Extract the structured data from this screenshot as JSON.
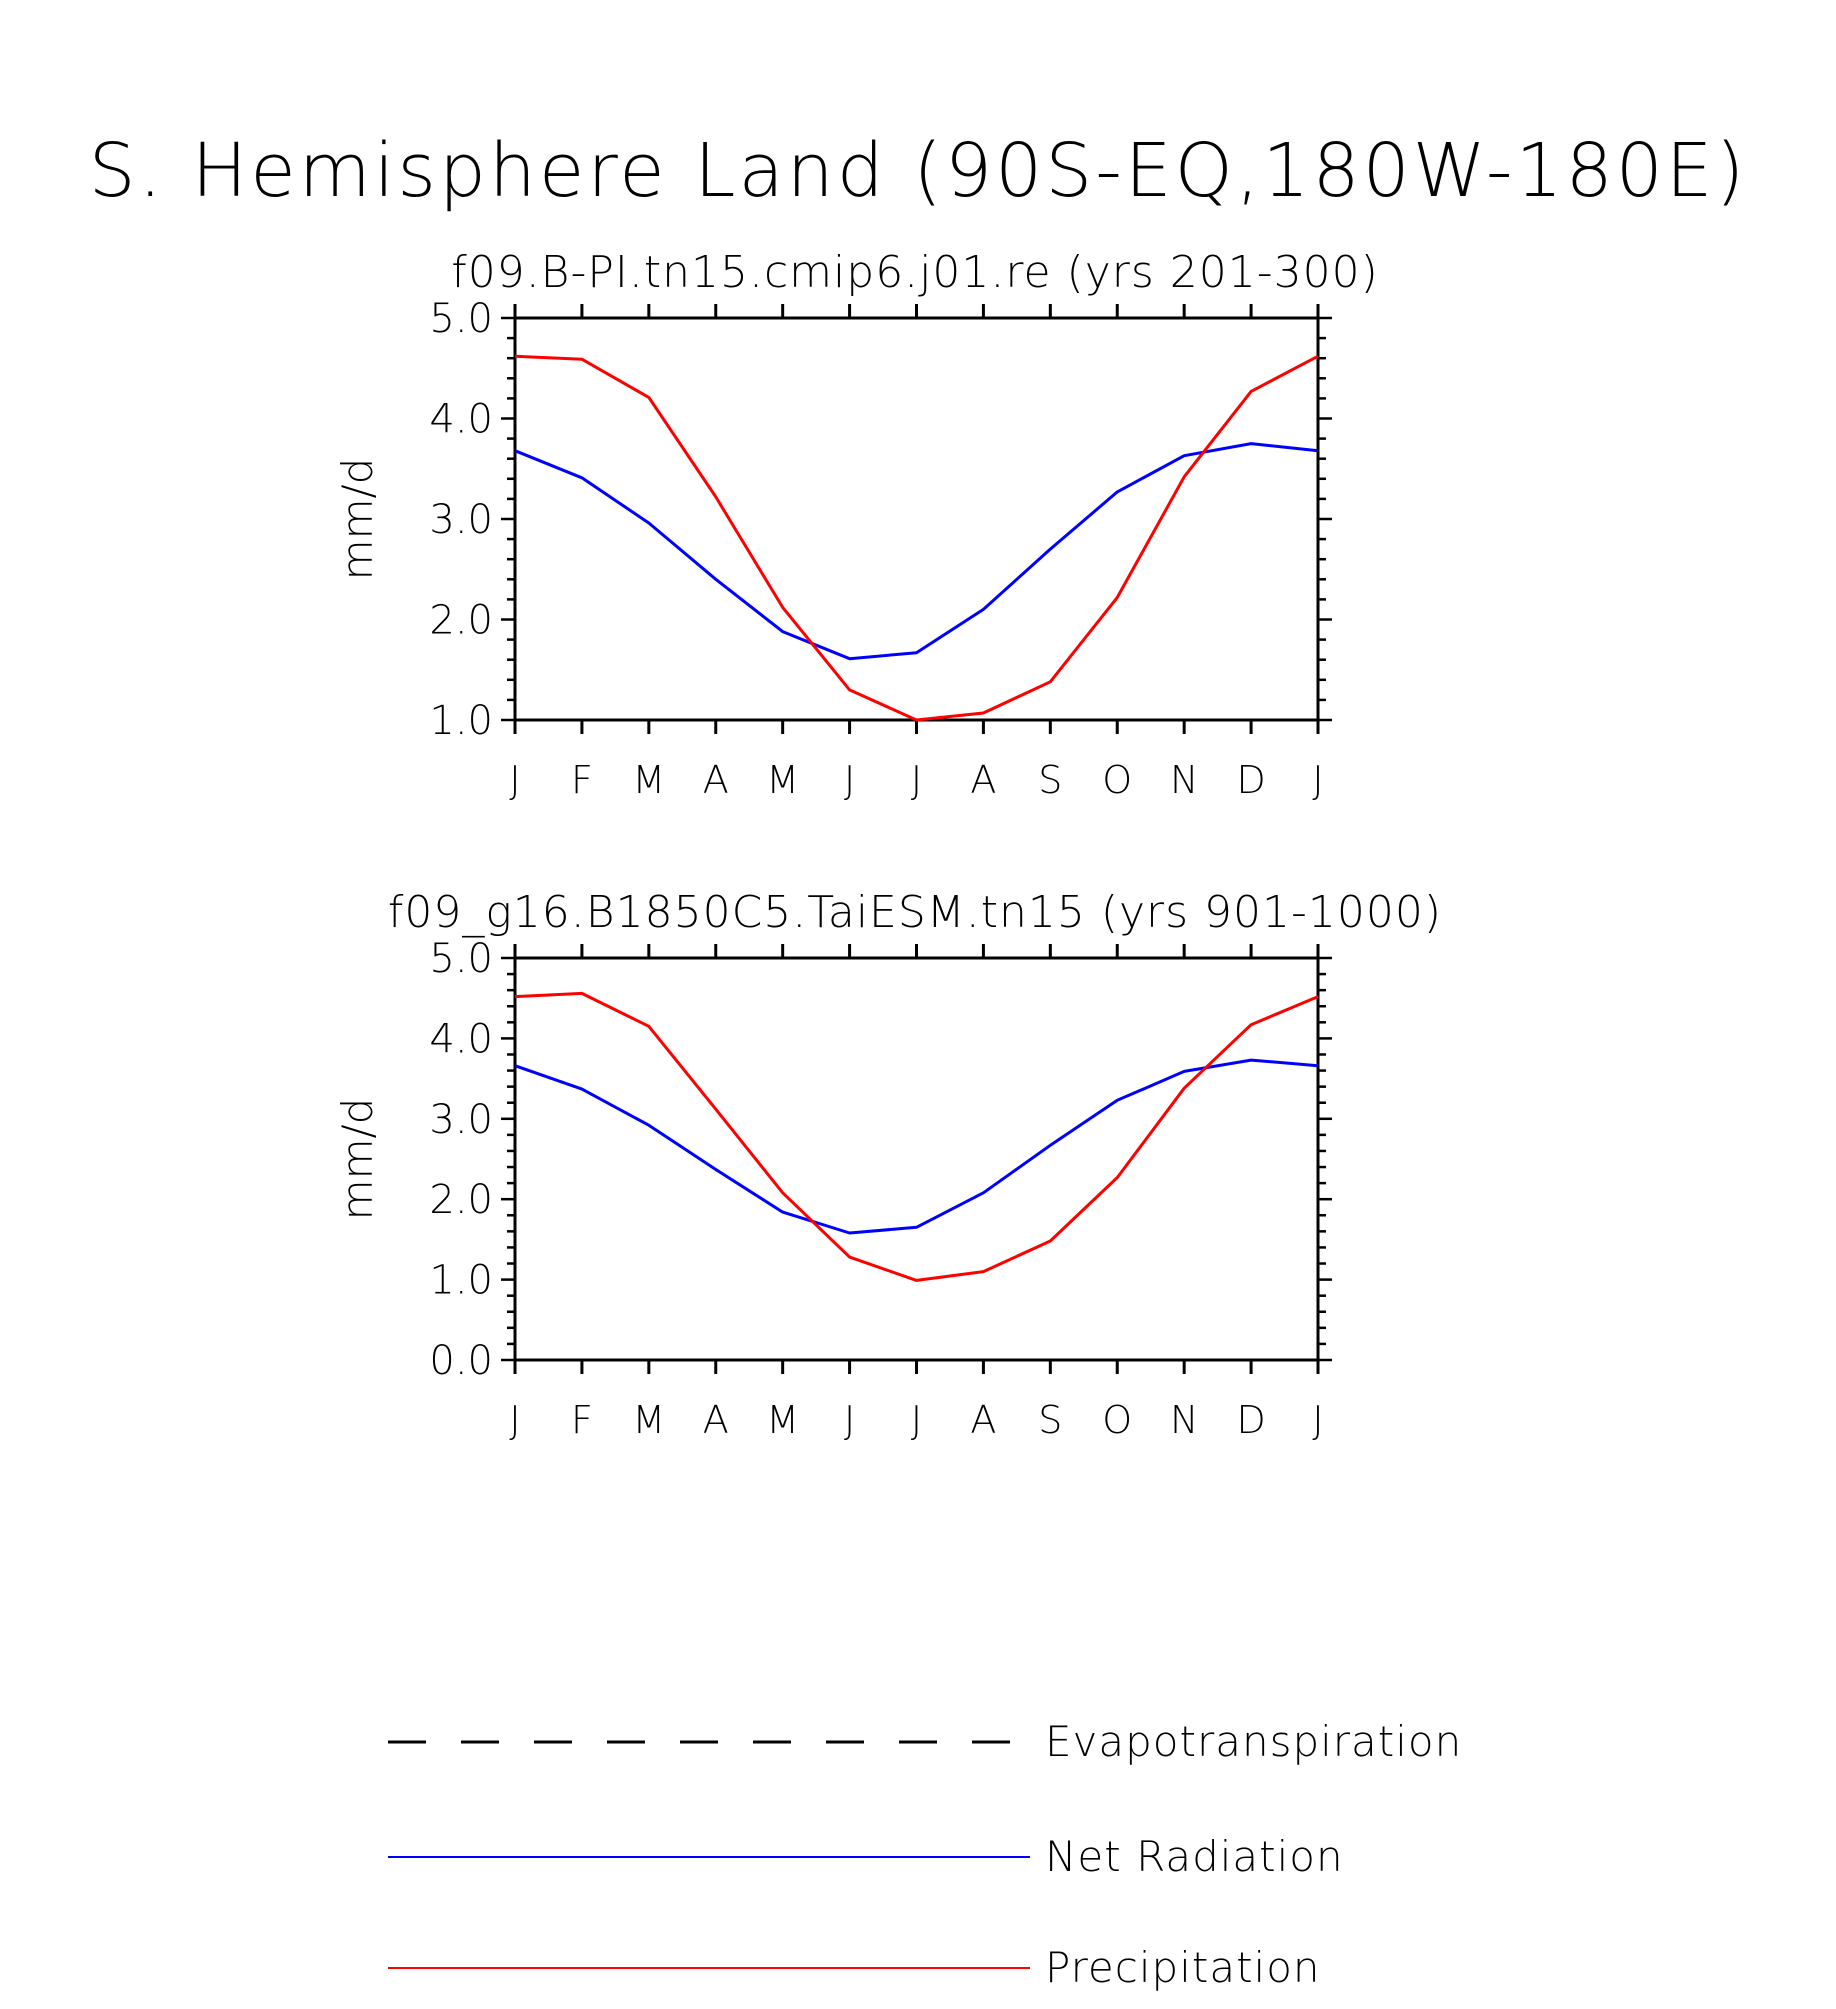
{
  "title": "S. Hemisphere Land (90S-EQ,180W-180E)",
  "colors": {
    "net_radiation": "#0000ff",
    "precipitation": "#ff0000",
    "evapotranspiration": "#000000",
    "axis": "#000000"
  },
  "chart_data": [
    {
      "type": "line",
      "title": "f09.B-PI.tn15.cmip6.j01.re (yrs 201-300)",
      "ylabel": "mm/d",
      "xlabel": "",
      "categories": [
        "J",
        "F",
        "M",
        "A",
        "M",
        "J",
        "J",
        "A",
        "S",
        "O",
        "N",
        "D",
        "J"
      ],
      "ylim": [
        1.0,
        5.0
      ],
      "yticks": [
        "5.0",
        "4.0",
        "3.0",
        "2.0",
        "1.0"
      ],
      "series": [
        {
          "name": "Net Radiation",
          "color": "#0000ff",
          "values": [
            3.68,
            3.41,
            2.96,
            2.4,
            1.88,
            1.61,
            1.67,
            2.1,
            2.7,
            3.27,
            3.63,
            3.75,
            3.68
          ]
        },
        {
          "name": "Precipitation",
          "color": "#ff0000",
          "values": [
            4.62,
            4.59,
            4.21,
            3.22,
            2.12,
            1.3,
            1.0,
            1.07,
            1.38,
            2.22,
            3.42,
            4.27,
            4.62
          ]
        }
      ]
    },
    {
      "type": "line",
      "title": "f09_g16.B1850C5.TaiESM.tn15 (yrs 901-1000)",
      "ylabel": "mm/d",
      "xlabel": "",
      "categories": [
        "J",
        "F",
        "M",
        "A",
        "M",
        "J",
        "J",
        "A",
        "S",
        "O",
        "N",
        "D",
        "J"
      ],
      "ylim": [
        0.0,
        5.0
      ],
      "yticks": [
        "5.0",
        "4.0",
        "3.0",
        "2.0",
        "1.0",
        "0.0"
      ],
      "series": [
        {
          "name": "Net Radiation",
          "color": "#0000ff",
          "values": [
            3.66,
            3.37,
            2.92,
            2.37,
            1.84,
            1.58,
            1.65,
            2.08,
            2.67,
            3.23,
            3.59,
            3.73,
            3.66
          ]
        },
        {
          "name": "Precipitation",
          "color": "#ff0000",
          "values": [
            4.52,
            4.56,
            4.15,
            3.12,
            2.08,
            1.28,
            0.99,
            1.1,
            1.48,
            2.27,
            3.38,
            4.17,
            4.52
          ]
        }
      ]
    }
  ],
  "legend": {
    "entries": [
      {
        "label": "Evapotranspiration",
        "color": "#000000",
        "style": "dashed"
      },
      {
        "label": "Net Radiation",
        "color": "#0000ff",
        "style": "solid"
      },
      {
        "label": "Precipitation",
        "color": "#ff0000",
        "style": "solid"
      }
    ]
  }
}
